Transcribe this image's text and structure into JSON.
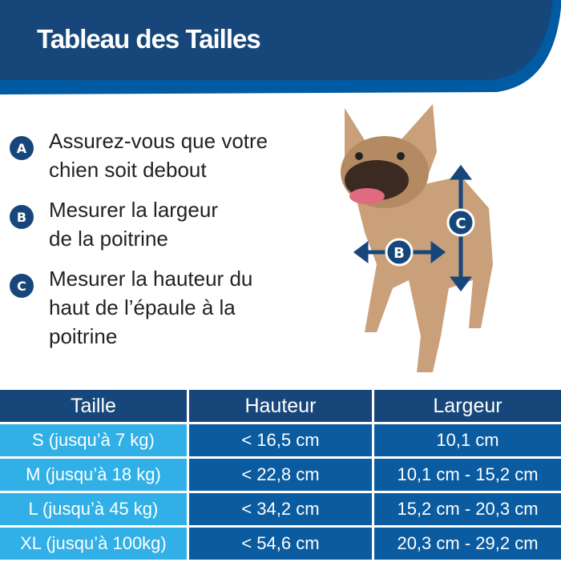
{
  "header": {
    "title": "Tableau des Tailles"
  },
  "colors": {
    "navy": "#17477a",
    "blue": "#0a5ba0",
    "light_blue": "#30b0e6"
  },
  "steps": [
    {
      "letter": "A",
      "lines": [
        "Assurez-vous que votre",
        "chien soit debout"
      ]
    },
    {
      "letter": "B",
      "lines": [
        "Mesurer la largeur",
        "de la poitrine"
      ]
    },
    {
      "letter": "C",
      "lines": [
        "Mesurer la hauteur du",
        "haut de l’épaule à la",
        "poitrine"
      ]
    }
  ],
  "image": {
    "markers": [
      "B",
      "C"
    ]
  },
  "table": {
    "headers": [
      "Taille",
      "Hauteur",
      "Largeur"
    ],
    "rows": [
      [
        "S (jusqu’à 7 kg)",
        "< 16,5 cm",
        "10,1 cm"
      ],
      [
        "M (jusqu’à 18 kg)",
        "< 22,8 cm",
        "10,1 cm - 15,2 cm"
      ],
      [
        "L (jusqu’à 45 kg)",
        "< 34,2 cm",
        "15,2 cm - 20,3 cm"
      ],
      [
        "XL (jusqu’à 100kg)",
        "< 54,6 cm",
        "20,3 cm - 29,2 cm"
      ]
    ]
  }
}
